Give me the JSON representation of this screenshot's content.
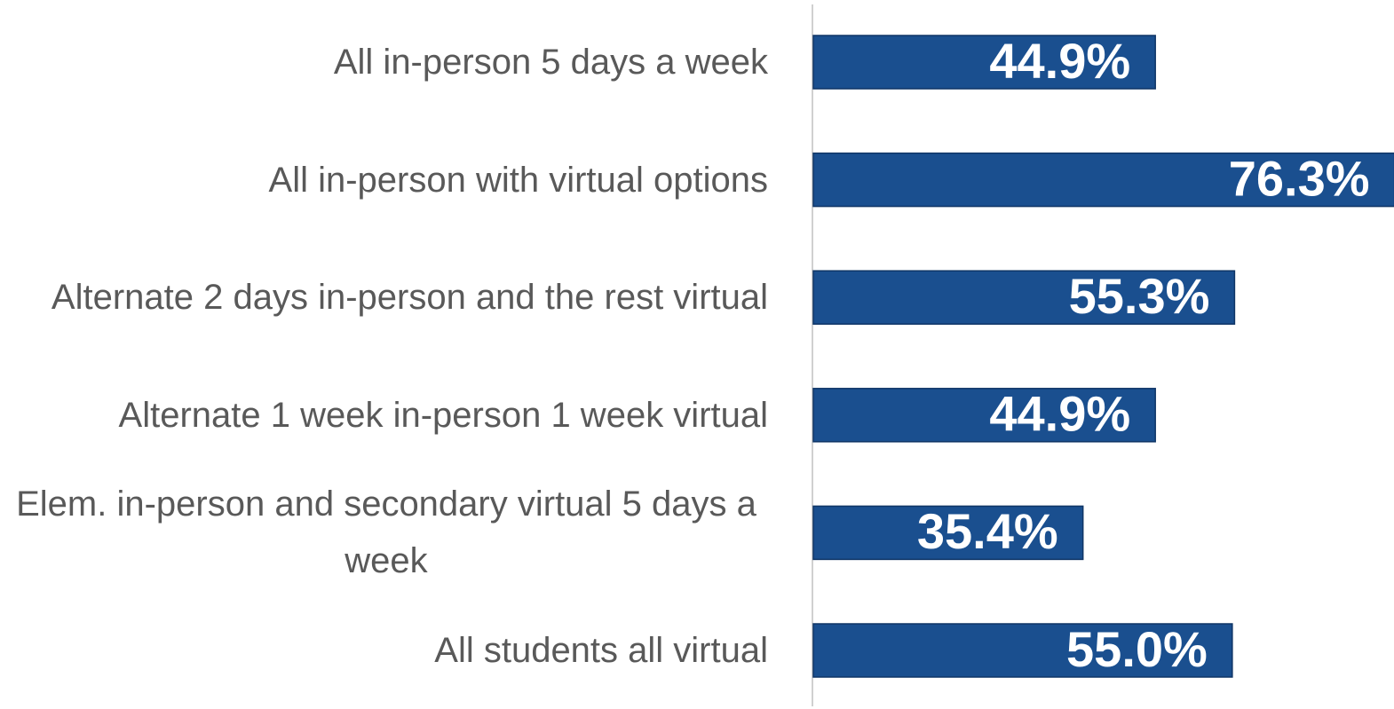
{
  "chart_data": {
    "type": "bar",
    "orientation": "horizontal",
    "categories": [
      "All in-person 5 days a week",
      "All in-person with virtual options",
      "Alternate 2 days in-person and the rest virtual",
      "Alternate 1 week in-person 1 week virtual",
      "Elem. in-person and secondary virtual 5 days a week",
      "All students all virtual"
    ],
    "values": [
      44.9,
      76.3,
      55.3,
      44.9,
      35.4,
      55.0
    ],
    "value_labels": [
      "44.9%",
      "76.3%",
      "55.3%",
      "44.9%",
      "35.4%",
      "55.0%"
    ],
    "color": "#1a4f8f",
    "xlim": [
      0,
      76
    ]
  }
}
